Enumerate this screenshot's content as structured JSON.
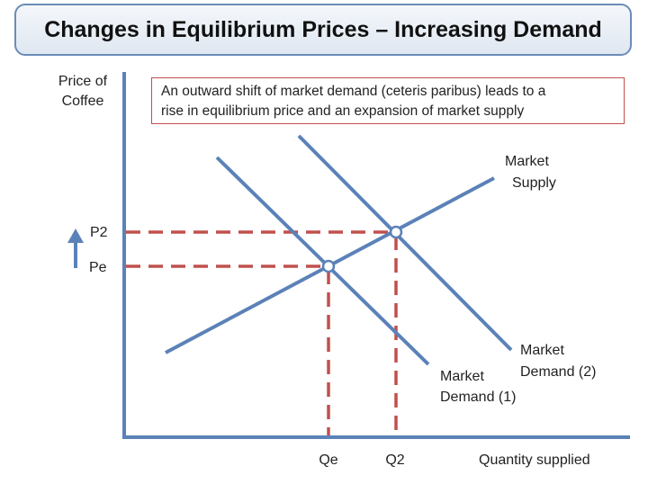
{
  "title": "Changes in Equilibrium Prices – Increasing Demand",
  "note": {
    "line1": "An outward shift of market demand (ceteris paribus) leads to a",
    "line2": "rise in equilibrium price and an expansion of market supply"
  },
  "axes": {
    "y_label_line1": "Price of",
    "y_label_line2": "Coffee",
    "x_label": "Quantity supplied"
  },
  "ticks": {
    "p2": "P2",
    "pe": "Pe",
    "qe": "Qe",
    "q2": "Q2"
  },
  "curves": {
    "supply_line1": "Market",
    "supply_line2": "Supply",
    "demand1_line1": "Market",
    "demand1_line2": "Demand (1)",
    "demand2_line1": "Market",
    "demand2_line2": "Demand (2)"
  },
  "colors": {
    "curve": "#5b82b8",
    "guide": "#c0504d",
    "arrow": "#5b82b8"
  }
}
